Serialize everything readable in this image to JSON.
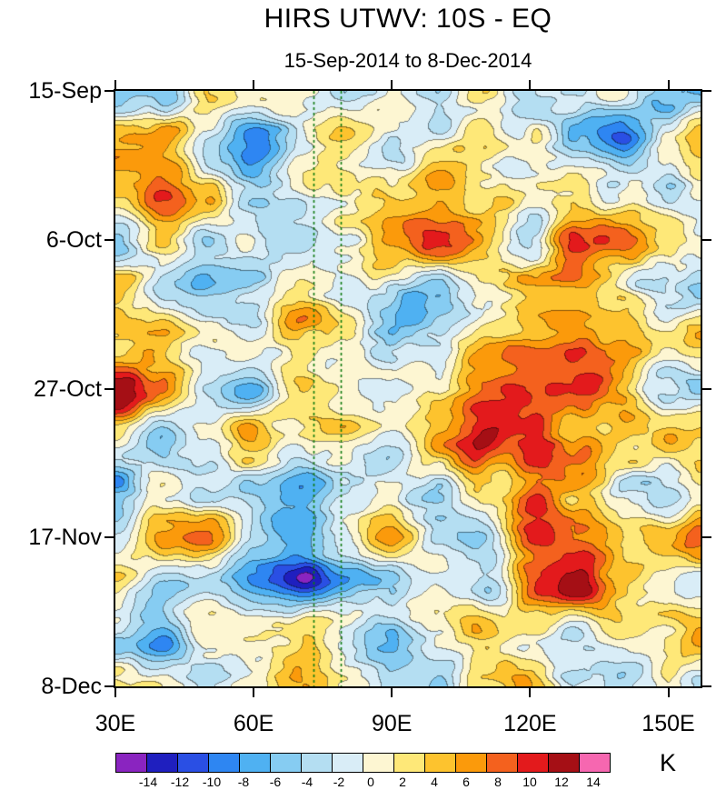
{
  "header": {
    "title": "HIRS UTWV: 10S - EQ",
    "subtitle": "15-Sep-2014 to 8-Dec-2014"
  },
  "chart_data": {
    "type": "heatmap",
    "title": "HIRS UTWV: 10S - EQ",
    "subtitle": "15-Sep-2014 to 8-Dec-2014",
    "x_axis": {
      "ticks": [
        "30E",
        "60E",
        "90E",
        "120E",
        "150E"
      ],
      "tick_values": [
        30,
        60,
        90,
        120,
        150
      ],
      "range": [
        30,
        157
      ]
    },
    "y_axis": {
      "ticks": [
        "15-Sep",
        "6-Oct",
        "27-Oct",
        "17-Nov",
        "8-Dec"
      ],
      "tick_day_offsets": [
        0,
        21,
        42,
        63,
        84
      ],
      "range_days": 84,
      "direction": "top-to-bottom"
    },
    "reference_lines": {
      "style": "dashed",
      "color": "#0f7a10",
      "x_values": [
        73,
        79
      ]
    },
    "colorbar": {
      "units_label": "K",
      "tick_labels": [
        "-14",
        "-12",
        "-10",
        "-8",
        "-6",
        "-4",
        "-2",
        "0",
        "2",
        "4",
        "6",
        "8",
        "10",
        "12",
        "14"
      ],
      "levels": [
        -14,
        -12,
        -10,
        -8,
        -6,
        -4,
        -2,
        0,
        2,
        4,
        6,
        8,
        10,
        12,
        14
      ],
      "colors": [
        "#8a24c0",
        "#1f1fbf",
        "#2a4fe4",
        "#2e86f2",
        "#4fb1f2",
        "#86ccf2",
        "#b4def2",
        "#d9edf7",
        "#fdf6d2",
        "#fee878",
        "#fdc32e",
        "#fb9a0b",
        "#f4611e",
        "#e31a1c",
        "#a50f15",
        "#f667b0"
      ]
    },
    "estimated_field": {
      "note_units": "K",
      "lon": [
        30,
        40,
        50,
        60,
        70,
        80,
        90,
        100,
        110,
        120,
        130,
        140,
        150,
        157
      ],
      "day_offset": [
        0,
        7,
        14,
        21,
        28,
        35,
        42,
        49,
        56,
        63,
        70,
        77,
        84
      ],
      "values": [
        [
          -2,
          -7,
          3,
          2,
          0,
          -3,
          2,
          -4,
          2,
          -5,
          -4,
          3,
          -5,
          -2
        ],
        [
          5,
          6,
          -2,
          -8,
          -4,
          3,
          -2,
          2,
          6,
          3,
          -6,
          -8,
          2,
          6
        ],
        [
          2,
          10,
          4,
          -3,
          2,
          5,
          6,
          8,
          4,
          2,
          6,
          -2,
          -4,
          2
        ],
        [
          -4,
          6,
          -2,
          -4,
          -2,
          2,
          8,
          10,
          6,
          -2,
          8,
          10,
          6,
          -2
        ],
        [
          2,
          -2,
          -4,
          -2,
          2,
          -2,
          -4,
          -6,
          2,
          6,
          4,
          2,
          -4,
          -6
        ],
        [
          6,
          8,
          2,
          -2,
          6,
          2,
          -4,
          -2,
          4,
          8,
          10,
          6,
          2,
          4
        ],
        [
          12,
          6,
          -2,
          -4,
          2,
          -2,
          -2,
          2,
          8,
          10,
          12,
          8,
          -2,
          -4
        ],
        [
          4,
          -4,
          2,
          6,
          -2,
          2,
          -4,
          4,
          15,
          12,
          8,
          4,
          4,
          2
        ],
        [
          -6,
          2,
          -2,
          -4,
          -6,
          -2,
          2,
          -2,
          4,
          8,
          4,
          -2,
          -4,
          2
        ],
        [
          -2,
          6,
          8,
          -2,
          -4,
          2,
          6,
          2,
          -2,
          10,
          6,
          2,
          4,
          6
        ],
        [
          2,
          -4,
          -2,
          -8,
          -12,
          -6,
          -4,
          2,
          -2,
          8,
          10,
          2,
          -2,
          -6
        ],
        [
          -4,
          -8,
          2,
          4,
          2,
          -2,
          -4,
          2,
          6,
          2,
          -2,
          4,
          2,
          4
        ],
        [
          2,
          4,
          -2,
          2,
          8,
          4,
          -2,
          -4,
          2,
          6,
          2,
          -2,
          4,
          -2
        ]
      ]
    }
  }
}
